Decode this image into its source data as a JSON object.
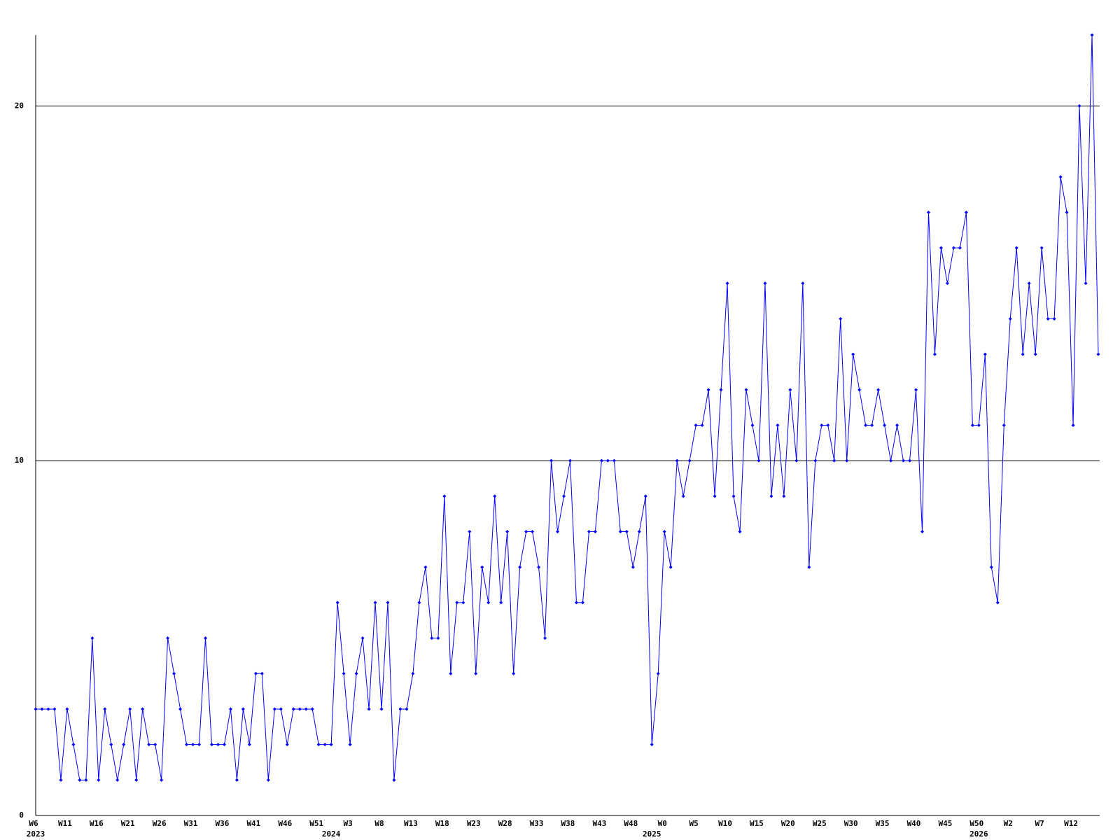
{
  "chart_data": {
    "type": "line",
    "categories": [
      "W6",
      null,
      null,
      null,
      null,
      "W11",
      null,
      null,
      null,
      null,
      "W16",
      null,
      null,
      null,
      null,
      "W21",
      null,
      null,
      null,
      null,
      "W26",
      null,
      null,
      null,
      null,
      "W31",
      null,
      null,
      null,
      null,
      "W36",
      null,
      null,
      null,
      null,
      "W41",
      null,
      null,
      null,
      null,
      "W46",
      null,
      null,
      null,
      null,
      "W51",
      null,
      null,
      null,
      null,
      "W3",
      null,
      null,
      null,
      null,
      "W8",
      null,
      null,
      null,
      null,
      "W13",
      null,
      null,
      null,
      null,
      "W18",
      null,
      null,
      null,
      null,
      "W23",
      null,
      null,
      null,
      null,
      "W28",
      null,
      null,
      null,
      null,
      "W33",
      null,
      null,
      null,
      null,
      "W38",
      null,
      null,
      null,
      null,
      "W43",
      null,
      null,
      null,
      null,
      "W48",
      null,
      null,
      null,
      null,
      "W0",
      null,
      null,
      null,
      null,
      "W5",
      null,
      null,
      null,
      null,
      "W10",
      null,
      null,
      null,
      null,
      "W15",
      null,
      null,
      null,
      null,
      "W20",
      null,
      null,
      null,
      null,
      "W25",
      null,
      null,
      null,
      null,
      "W30",
      null,
      null,
      null,
      null,
      "W35",
      null,
      null,
      null,
      null,
      "W40",
      null,
      null,
      null,
      null,
      "W45",
      null,
      null,
      null,
      null,
      "W50",
      null,
      null,
      null,
      null,
      "W2",
      null,
      null,
      null,
      null,
      "W7",
      null,
      null,
      null,
      null,
      "W12",
      null,
      null,
      null,
      null
    ],
    "years": [
      "2023",
      null,
      null,
      null,
      null,
      null,
      null,
      null,
      null,
      null,
      null,
      null,
      null,
      null,
      null,
      null,
      null,
      null,
      null,
      null,
      null,
      null,
      null,
      null,
      null,
      null,
      null,
      null,
      null,
      null,
      null,
      null,
      null,
      null,
      null,
      null,
      null,
      null,
      null,
      null,
      null,
      null,
      null,
      null,
      null,
      null,
      null,
      "2024",
      null,
      null,
      null,
      null,
      null,
      null,
      null,
      null,
      null,
      null,
      null,
      null,
      null,
      null,
      null,
      null,
      null,
      null,
      null,
      null,
      null,
      null,
      null,
      null,
      null,
      null,
      null,
      null,
      null,
      null,
      null,
      null,
      null,
      null,
      null,
      null,
      null,
      null,
      null,
      null,
      null,
      null,
      null,
      null,
      null,
      null,
      null,
      null,
      null,
      null,
      "2025",
      null,
      null,
      null,
      null,
      null,
      null,
      null,
      null,
      null,
      null,
      null,
      null,
      null,
      null,
      null,
      null,
      null,
      null,
      null,
      null,
      null,
      null,
      null,
      null,
      null,
      null,
      null,
      null,
      null,
      null,
      null,
      null,
      null,
      null,
      null,
      null,
      null,
      null,
      null,
      null,
      null,
      null,
      null,
      null,
      null,
      null,
      null,
      null,
      null,
      null,
      null,
      "2026",
      null,
      null,
      null,
      null,
      null,
      null,
      null,
      null,
      null,
      null,
      null,
      null,
      null,
      null,
      null,
      null
    ],
    "values": [
      3,
      3,
      3,
      3,
      1,
      3,
      2,
      1,
      1,
      5,
      1,
      3,
      2,
      1,
      2,
      3,
      1,
      3,
      2,
      2,
      1,
      5,
      4,
      3,
      2,
      2,
      2,
      5,
      2,
      2,
      2,
      3,
      1,
      3,
      2,
      4,
      4,
      1,
      3,
      3,
      2,
      3,
      3,
      3,
      3,
      2,
      2,
      2,
      6,
      4,
      2,
      4,
      5,
      3,
      6,
      3,
      6,
      1,
      3,
      3,
      4,
      6,
      7,
      5,
      5,
      9,
      4,
      6,
      6,
      8,
      4,
      7,
      6,
      9,
      6,
      8,
      4,
      7,
      8,
      8,
      7,
      5,
      10,
      8,
      9,
      10,
      6,
      6,
      8,
      8,
      10,
      10,
      10,
      8,
      8,
      7,
      8,
      9,
      2,
      4,
      8,
      7,
      10,
      9,
      10,
      11,
      11,
      12,
      9,
      12,
      15,
      9,
      8,
      12,
      11,
      10,
      15,
      9,
      11,
      9,
      12,
      10,
      15,
      7,
      10,
      11,
      11,
      10,
      14,
      10,
      13,
      12,
      11,
      11,
      12,
      11,
      10,
      11,
      10,
      10,
      12,
      8,
      17,
      13,
      16,
      15,
      16,
      16,
      17,
      11,
      11,
      13,
      7,
      6,
      11,
      14,
      16,
      13,
      15,
      13,
      16,
      14,
      14,
      18,
      17,
      11,
      20,
      15,
      22,
      13
    ],
    "color": "#0000ff",
    "ylim": [
      0,
      22
    ],
    "yticks": [
      0,
      10,
      20
    ],
    "grid": true
  }
}
